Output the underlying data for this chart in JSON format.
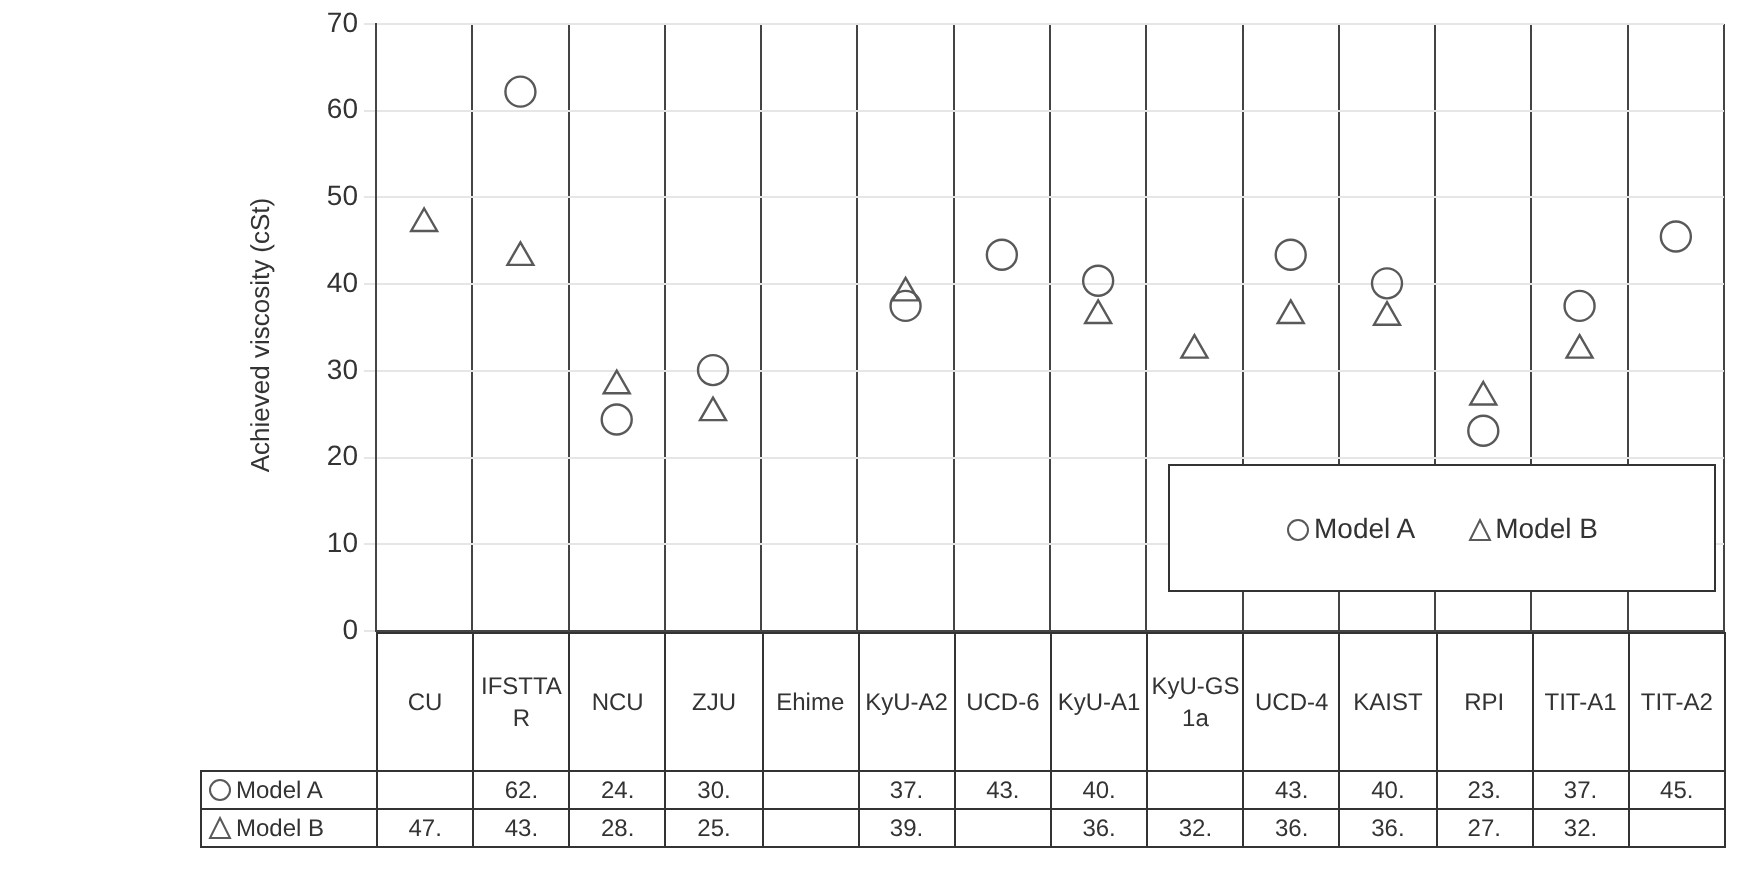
{
  "chart_data": {
    "type": "scatter",
    "ylabel": "Achieved viscosity (cSt)",
    "categories": [
      "CU",
      "IFSTTAR",
      "NCU",
      "ZJU",
      "Ehime",
      "KyU-A2",
      "UCD-6",
      "KyU-A1",
      "KyU-GS1a",
      "UCD-4",
      "KAIST",
      "RPI",
      "TIT-A1",
      "TIT-A2"
    ],
    "series": [
      {
        "name": "Model A",
        "color": "#595959",
        "marker": "circle",
        "values": [
          null,
          62.2,
          24.4,
          30.1,
          null,
          37.5,
          43.4,
          40.4,
          null,
          43.4,
          40.1,
          23.1,
          37.5,
          45.5
        ],
        "value_labels": [
          null,
          "62.",
          "24.",
          "30.",
          null,
          "37.",
          "43.",
          "40.",
          null,
          "43.",
          "40.",
          "23.",
          "37.",
          "45."
        ]
      },
      {
        "name": "Model B",
        "color": "#595959",
        "marker": "triangle",
        "values": [
          47.0,
          43.1,
          28.3,
          25.2,
          null,
          39.0,
          null,
          36.4,
          32.4,
          36.4,
          36.2,
          27.0,
          32.4,
          null
        ],
        "value_labels": [
          "47.",
          "43.",
          "28.",
          "25.",
          null,
          "39.",
          null,
          "36.",
          "32.",
          "36.",
          "36.",
          "27.",
          "32.",
          null
        ]
      }
    ],
    "ylim": [
      0,
      70
    ],
    "yticks": [
      0,
      10,
      20,
      30,
      40,
      50,
      60,
      70
    ],
    "grid": true,
    "legend": "bottom right",
    "data_labels": false
  }
}
